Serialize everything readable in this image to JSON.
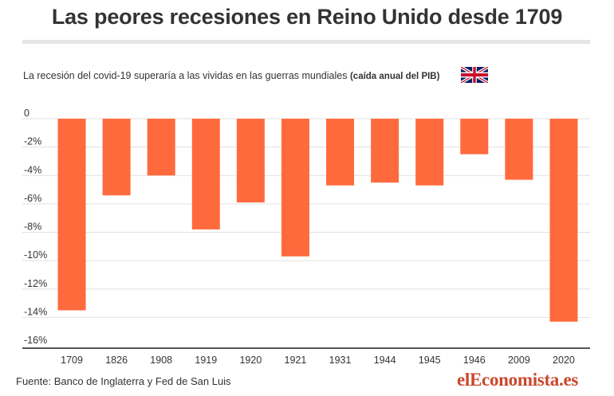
{
  "title": "Las peores recesiones en Reino Unido desde 1709",
  "subtitle": {
    "main": "La recesión del covid-19 superaría a las vividas en las guerras mundiales",
    "note": "(caída anual del PIB)"
  },
  "flag_icon": "uk-flag-icon",
  "source": "Fuente: Banco de Inglaterra y Fed de San Luis",
  "brand": "elEconomista.es",
  "colors": {
    "bar": "#ff6a3d",
    "grid": "#e0e0e0",
    "axis": "#555555",
    "text": "#333333"
  },
  "chart_data": {
    "type": "bar",
    "categories": [
      "1709",
      "1826",
      "1908",
      "1919",
      "1920",
      "1921",
      "1931",
      "1944",
      "1945",
      "1946",
      "2009",
      "2020"
    ],
    "values": [
      -13.5,
      -5.4,
      -4.0,
      -7.8,
      -5.9,
      -9.7,
      -4.7,
      -4.5,
      -4.7,
      -2.5,
      -4.3,
      -14.3
    ],
    "ylim": [
      -16,
      0
    ],
    "yticks": [
      0,
      -2,
      -4,
      -6,
      -8,
      -10,
      -12,
      -14,
      -16
    ],
    "ytick_labels": [
      "0",
      "-2%",
      "-4%",
      "-6%",
      "-8%",
      "-10%",
      "-12%",
      "-14%",
      "-16%"
    ],
    "grid": true,
    "xlabel": "",
    "ylabel": ""
  }
}
